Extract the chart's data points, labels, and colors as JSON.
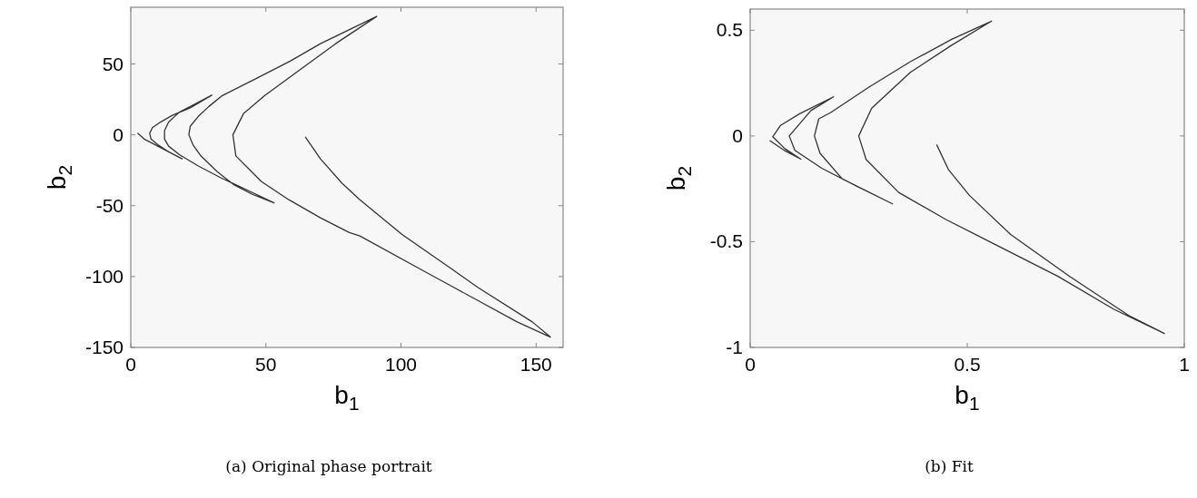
{
  "chart_data": [
    {
      "type": "line",
      "xlabel": "b$_{1}$",
      "ylabel": "b$_{2}$",
      "xlim": [
        0,
        160
      ],
      "ylim": [
        -150,
        90
      ],
      "xticks": [
        0,
        50,
        100,
        150
      ],
      "yticks": [
        -150,
        -100,
        -50,
        0,
        50
      ],
      "annotations": [
        "(a) Original phase portrait"
      ],
      "series": [
        {
          "color": "#333333",
          "x": [
            2.6,
            5,
            10,
            15,
            19,
            14,
            10,
            7.5,
            7,
            8,
            11,
            15.4,
            22,
            30,
            24,
            18,
            14,
            12.5,
            12.5,
            14,
            18,
            25,
            33,
            42,
            53,
            45,
            38,
            32,
            26,
            23,
            21.5,
            22,
            25,
            28.9,
            33.9,
            46.7,
            59,
            70.2,
            91,
            75.8,
            62,
            49.6,
            41.7,
            37.8,
            38.9,
            48.4,
            58.5,
            70.2,
            80.9,
            84.8,
            107.2,
            119.5,
            143,
            155.3,
            148.6,
            128.4,
            118.9,
            100.4,
            84.8,
            78.1,
            70.2,
            64.7
          ],
          "values": [
            1,
            -3,
            -8,
            -13,
            -17,
            -12,
            -7,
            -3,
            1,
            5,
            9,
            13.8,
            19,
            28,
            22,
            16,
            9,
            3,
            -3,
            -8,
            -14,
            -22,
            -30,
            -38,
            -48,
            -42,
            -35,
            -26,
            -15,
            -7,
            0,
            6,
            13,
            20,
            27.7,
            40,
            52,
            64.3,
            83.5,
            64.3,
            45,
            27.7,
            14.9,
            0,
            -14.9,
            -33,
            -45.8,
            -58.6,
            -69,
            -71.4,
            -94.8,
            -107.6,
            -132,
            -142.7,
            -132,
            -107.6,
            -94.8,
            -70.3,
            -45.8,
            -34,
            -17,
            -1.7
          ]
        }
      ]
    },
    {
      "type": "line",
      "xlabel": "b$_{1}$",
      "ylabel": "b$_{2}$",
      "xlim": [
        0,
        1
      ],
      "ylim": [
        -1,
        0.6
      ],
      "xticks": [
        0,
        0.5,
        1
      ],
      "yticks": [
        -1,
        -0.5,
        0,
        0.5
      ],
      "annotations": [
        "(b) Fit"
      ],
      "series": [
        {
          "color": "#333333",
          "x": [
            0.046,
            0.08,
            0.117,
            0.08,
            0.052,
            0.07,
            0.114,
            0.192,
            0.14,
            0.09,
            0.103,
            0.165,
            0.246,
            0.328,
            0.212,
            0.161,
            0.148,
            0.158,
            0.185,
            0.273,
            0.369,
            0.464,
            0.556,
            0.464,
            0.369,
            0.28,
            0.25,
            0.267,
            0.342,
            0.45,
            0.573,
            0.709,
            0.838,
            0.954,
            0.872,
            0.736,
            0.6,
            0.505,
            0.457,
            0.43
          ],
          "values": [
            -0.023,
            -0.07,
            -0.11,
            -0.06,
            -0.004,
            0.05,
            0.105,
            0.185,
            0.12,
            0,
            -0.068,
            -0.153,
            -0.238,
            -0.321,
            -0.203,
            -0.082,
            0,
            0.081,
            0.11,
            0.23,
            0.351,
            0.457,
            0.543,
            0.429,
            0.301,
            0.131,
            0,
            -0.111,
            -0.267,
            -0.394,
            -0.522,
            -0.664,
            -0.82,
            -0.934,
            -0.849,
            -0.664,
            -0.466,
            -0.281,
            -0.16,
            -0.043
          ]
        }
      ]
    }
  ]
}
